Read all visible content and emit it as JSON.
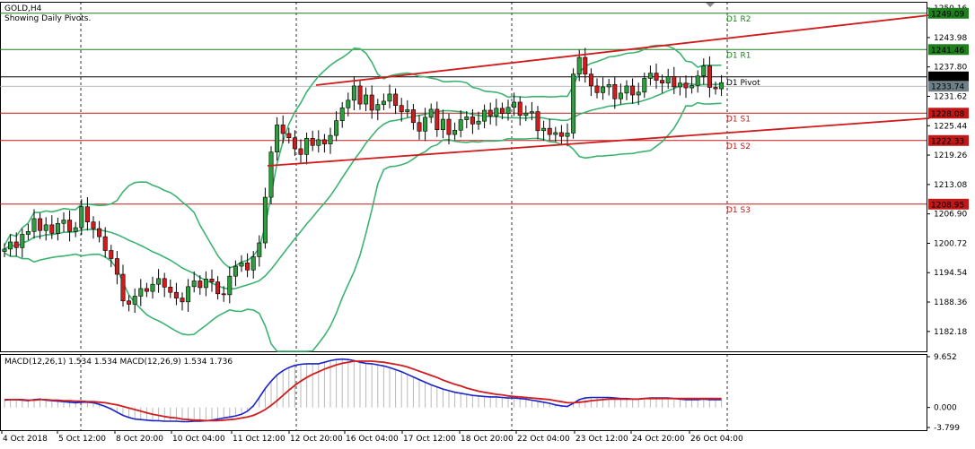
{
  "chart_data": {
    "type": "candlestick",
    "symbol_label": "GOLD,H4",
    "subtitle": "Showing Daily Pivots.",
    "price_ticks": [
      "1250.16",
      "1243.98",
      "1237.80",
      "1231.62",
      "1225.44",
      "1219.26",
      "1213.08",
      "1206.90",
      "1200.72",
      "1194.54",
      "1188.36",
      "1182.18"
    ],
    "time_ticks": [
      "4 Oct 2018",
      "5 Oct 12:00",
      "8 Oct 20:00",
      "10 Oct 04:00",
      "11 Oct 12:00",
      "12 Oct 20:00",
      "16 Oct 04:00",
      "17 Oct 12:00",
      "18 Oct 20:00",
      "22 Oct 04:00",
      "23 Oct 12:00",
      "24 Oct 20:00",
      "26 Oct 04:00"
    ],
    "ylim": [
      1178.0,
      1251.5
    ],
    "price_tags": [
      {
        "text": "1249.09",
        "value": 1249.09,
        "color": "#1f7f1f"
      },
      {
        "text": "1241.46",
        "value": 1241.46,
        "color": "#1f7f1f"
      },
      {
        "text": "1235.71",
        "value": 1235.71,
        "color": "#000000"
      },
      {
        "text": "1233.74",
        "value": 1233.74,
        "color": "#6f7f86"
      },
      {
        "text": "1228.08",
        "value": 1228.08,
        "color": "#c01818"
      },
      {
        "text": "1222.33",
        "value": 1222.33,
        "color": "#c01818"
      },
      {
        "text": "1208.95",
        "value": 1208.95,
        "color": "#c01818"
      }
    ],
    "pivots": [
      {
        "name": "D1 R2",
        "value": 1249.09,
        "color": "#1f7f1f"
      },
      {
        "name": "D1 R1",
        "value": 1241.46,
        "color": "#1f7f1f"
      },
      {
        "name": "D1 Pivot",
        "value": 1235.71,
        "color": "#000000"
      },
      {
        "name": "D1 S1",
        "value": 1228.08,
        "color": "#c01818"
      },
      {
        "name": "D1 S2",
        "value": 1222.33,
        "color": "#c01818"
      },
      {
        "name": "D1 S3",
        "value": 1208.95,
        "color": "#c01818"
      }
    ],
    "candles_close": [
      1199.5,
      1201.0,
      1199.8,
      1202.6,
      1203.2,
      1205.9,
      1203.4,
      1204.6,
      1202.8,
      1204.9,
      1205.6,
      1203.2,
      1204.0,
      1208.4,
      1205.2,
      1203.8,
      1202.1,
      1199.2,
      1197.5,
      1194.2,
      1188.6,
      1187.9,
      1189.6,
      1191.2,
      1190.6,
      1192.1,
      1193.3,
      1191.5,
      1190.4,
      1189.2,
      1188.4,
      1191.6,
      1192.8,
      1191.4,
      1193.2,
      1192.6,
      1190.1,
      1189.9,
      1193.8,
      1195.9,
      1196.6,
      1195.1,
      1197.9,
      1200.8,
      1210.4,
      1219.9,
      1225.6,
      1223.8,
      1222.9,
      1220.6,
      1219.4,
      1222.8,
      1221.3,
      1222.5,
      1221.6,
      1223.4,
      1226.5,
      1229.2,
      1230.8,
      1233.8,
      1230.0,
      1231.9,
      1228.7,
      1229.9,
      1230.6,
      1232.1,
      1229.7,
      1228.4,
      1228.8,
      1226.1,
      1224.3,
      1227.2,
      1228.9,
      1224.6,
      1226.8,
      1223.6,
      1224.5,
      1226.7,
      1227.3,
      1225.8,
      1226.4,
      1228.7,
      1227.5,
      1229.1,
      1228.0,
      1229.3,
      1230.4,
      1227.6,
      1228.1,
      1228.4,
      1224.4,
      1224.9,
      1223.6,
      1224.0,
      1223.2,
      1223.9,
      1236.3,
      1239.8,
      1236.3,
      1233.8,
      1232.4,
      1233.6,
      1234.1,
      1231.1,
      1232.3,
      1233.8,
      1231.9,
      1232.5,
      1235.4,
      1236.5,
      1235.0,
      1234.4,
      1235.8,
      1233.6,
      1234.4,
      1233.4,
      1233.9,
      1235.9,
      1238.0,
      1233.5,
      1233.2,
      1234.5
    ],
    "candles_open": [
      1199.0,
      1199.5,
      1201.0,
      1199.8,
      1202.6,
      1203.2,
      1205.9,
      1203.4,
      1204.6,
      1202.8,
      1204.9,
      1205.6,
      1203.2,
      1204.0,
      1208.4,
      1205.2,
      1203.8,
      1202.1,
      1199.2,
      1197.5,
      1194.2,
      1188.6,
      1187.9,
      1189.6,
      1191.2,
      1190.6,
      1192.1,
      1193.3,
      1191.5,
      1190.4,
      1189.2,
      1188.4,
      1191.6,
      1192.8,
      1191.4,
      1193.2,
      1192.6,
      1190.1,
      1189.9,
      1193.8,
      1195.9,
      1196.6,
      1195.1,
      1197.9,
      1200.8,
      1210.4,
      1219.9,
      1225.6,
      1223.8,
      1222.9,
      1220.6,
      1219.4,
      1222.8,
      1221.3,
      1222.5,
      1221.6,
      1223.4,
      1226.5,
      1229.2,
      1230.8,
      1233.8,
      1230.0,
      1231.9,
      1228.7,
      1229.9,
      1230.6,
      1232.1,
      1229.7,
      1228.4,
      1228.8,
      1226.1,
      1224.3,
      1227.2,
      1228.9,
      1224.6,
      1226.8,
      1223.6,
      1224.5,
      1226.7,
      1227.3,
      1225.8,
      1226.4,
      1228.7,
      1227.5,
      1229.1,
      1228.0,
      1229.3,
      1230.4,
      1227.6,
      1228.1,
      1228.4,
      1224.4,
      1224.9,
      1223.6,
      1224.0,
      1223.2,
      1223.9,
      1236.3,
      1239.8,
      1236.3,
      1233.8,
      1232.4,
      1233.6,
      1234.1,
      1231.1,
      1232.3,
      1233.8,
      1231.9,
      1232.5,
      1235.4,
      1236.5,
      1235.0,
      1234.4,
      1235.8,
      1233.6,
      1234.4,
      1233.4,
      1233.9,
      1235.9,
      1238.0,
      1233.5,
      1233.2
    ],
    "macd_label": "MACD(12,26,1) 1.534 1.534 MACD(12,26,9) 1.534 1.736",
    "macd_ticks": [
      "9.652",
      "0.000",
      "-3.799"
    ],
    "macd_ylim": [
      -3.799,
      9.652
    ],
    "macd_line": [
      1.4,
      1.5,
      1.5,
      1.4,
      1.3,
      1.5,
      1.6,
      1.4,
      1.3,
      1.2,
      1.1,
      1.0,
      0.9,
      1.0,
      1.0,
      0.9,
      0.6,
      0.2,
      -0.3,
      -0.9,
      -1.5,
      -1.9,
      -2.2,
      -2.3,
      -2.4,
      -2.5,
      -2.5,
      -2.6,
      -2.6,
      -2.6,
      -2.7,
      -2.7,
      -2.6,
      -2.6,
      -2.5,
      -2.4,
      -2.2,
      -2.0,
      -1.8,
      -1.6,
      -1.3,
      -0.7,
      0.3,
      1.9,
      3.6,
      5.0,
      6.2,
      7.0,
      7.6,
      8.0,
      8.2,
      8.3,
      8.3,
      8.3,
      8.6,
      8.9,
      9.1,
      9.2,
      9.1,
      8.9,
      8.6,
      8.4,
      8.3,
      8.1,
      7.9,
      7.6,
      7.2,
      6.8,
      6.3,
      5.8,
      5.3,
      4.8,
      4.3,
      3.9,
      3.5,
      3.2,
      2.9,
      2.7,
      2.5,
      2.3,
      2.2,
      2.1,
      2.0,
      2.0,
      1.9,
      1.8,
      1.8,
      1.7,
      1.6,
      1.4,
      1.2,
      1.0,
      0.8,
      0.5,
      0.3,
      0.2,
      0.8,
      1.5,
      1.8,
      1.9,
      1.9,
      1.9,
      1.9,
      1.8,
      1.7,
      1.7,
      1.6,
      1.6,
      1.7,
      1.8,
      1.8,
      1.8,
      1.8,
      1.7,
      1.6,
      1.5,
      1.5,
      1.5,
      1.6,
      1.5,
      1.5,
      1.5
    ],
    "signal_line": [
      1.5,
      1.5,
      1.5,
      1.5,
      1.4,
      1.4,
      1.5,
      1.5,
      1.4,
      1.4,
      1.3,
      1.3,
      1.2,
      1.2,
      1.1,
      1.1,
      1.0,
      0.9,
      0.7,
      0.5,
      0.2,
      -0.1,
      -0.4,
      -0.7,
      -1.0,
      -1.3,
      -1.5,
      -1.7,
      -1.9,
      -2.0,
      -2.2,
      -2.3,
      -2.4,
      -2.4,
      -2.5,
      -2.5,
      -2.5,
      -2.4,
      -2.3,
      -2.2,
      -2.0,
      -1.8,
      -1.5,
      -1.0,
      -0.4,
      0.4,
      1.3,
      2.3,
      3.3,
      4.2,
      5.0,
      5.7,
      6.3,
      6.8,
      7.3,
      7.7,
      8.1,
      8.4,
      8.6,
      8.8,
      8.8,
      8.8,
      8.8,
      8.7,
      8.6,
      8.4,
      8.2,
      8.0,
      7.7,
      7.3,
      6.9,
      6.5,
      6.1,
      5.7,
      5.2,
      4.8,
      4.4,
      4.1,
      3.7,
      3.4,
      3.1,
      2.9,
      2.7,
      2.5,
      2.4,
      2.2,
      2.1,
      2.0,
      1.9,
      1.8,
      1.7,
      1.6,
      1.5,
      1.3,
      1.1,
      0.9,
      0.9,
      1.0,
      1.1,
      1.3,
      1.4,
      1.5,
      1.6,
      1.6,
      1.6,
      1.6,
      1.6,
      1.6,
      1.7,
      1.7,
      1.7,
      1.7,
      1.7,
      1.7,
      1.7,
      1.7,
      1.7,
      1.7,
      1.7,
      1.7,
      1.7,
      1.7
    ]
  }
}
